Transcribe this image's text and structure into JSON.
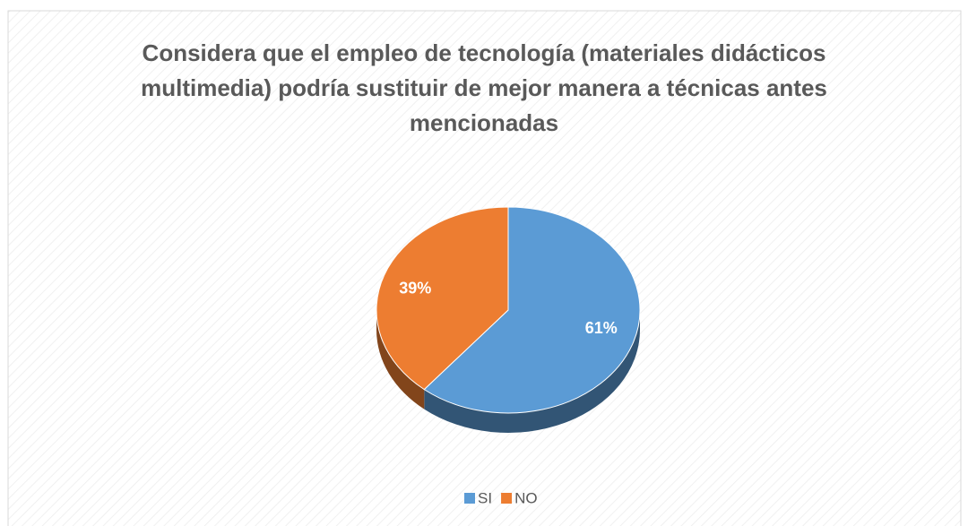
{
  "chart_data": {
    "type": "pie",
    "title": "Considera que el empleo de tecnología (materiales didácticos multimedia) podría sustituir de mejor manera a técnicas antes mencionadas",
    "categories": [
      "SI",
      "NO"
    ],
    "values": [
      61,
      39
    ],
    "value_labels": [
      "61%",
      "39%"
    ],
    "colors": [
      "#5b9bd5",
      "#ed7d31"
    ],
    "legend": "bottom"
  }
}
